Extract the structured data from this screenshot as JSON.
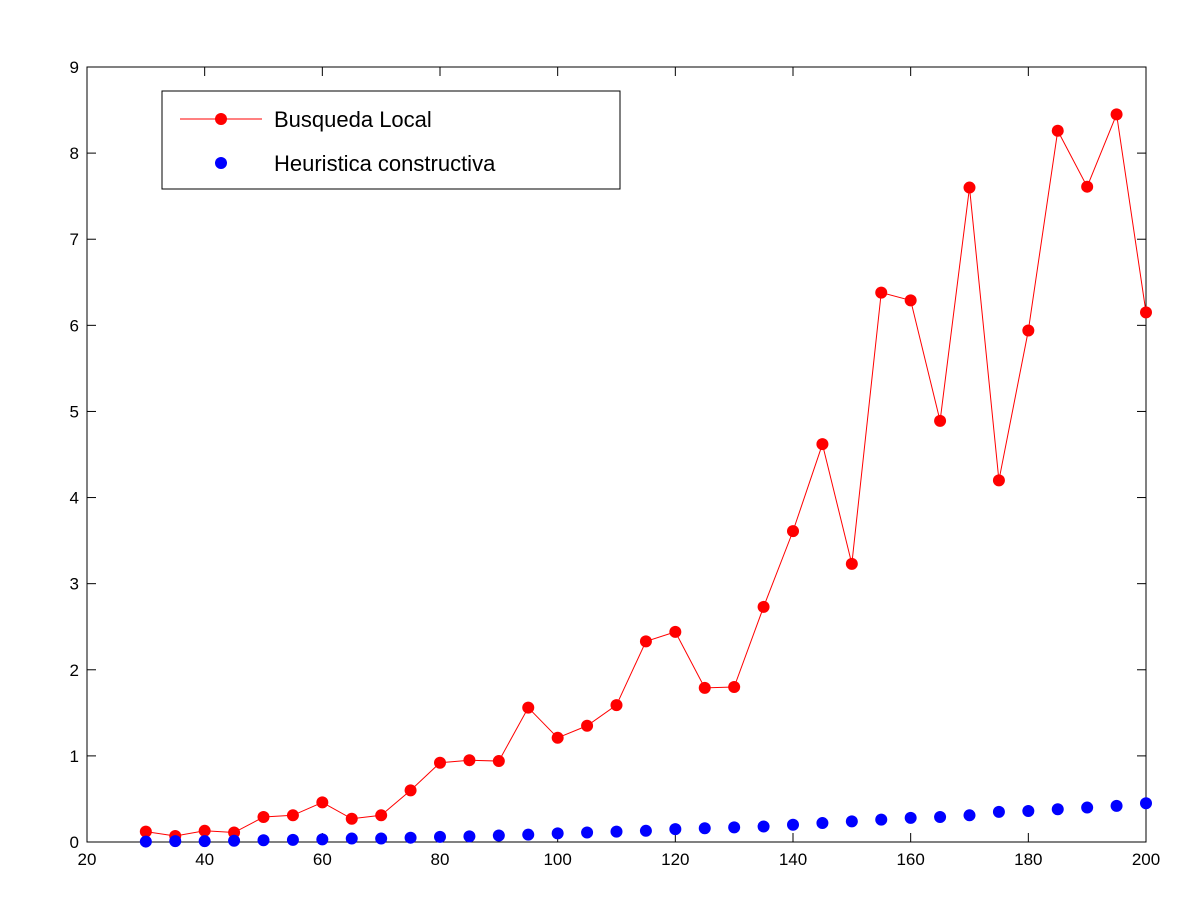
{
  "chart_data": {
    "type": "line",
    "title": "",
    "xlabel": "",
    "ylabel": "",
    "xlim": [
      20,
      200
    ],
    "ylim": [
      0,
      9
    ],
    "xticks": [
      20,
      40,
      60,
      80,
      100,
      120,
      140,
      160,
      180,
      200
    ],
    "yticks": [
      0,
      1,
      2,
      3,
      4,
      5,
      6,
      7,
      8,
      9
    ],
    "grid": false,
    "legend_position": "top-left",
    "x": [
      30,
      35,
      40,
      45,
      50,
      55,
      60,
      65,
      70,
      75,
      80,
      85,
      90,
      95,
      100,
      105,
      110,
      115,
      120,
      125,
      130,
      135,
      140,
      145,
      150,
      155,
      160,
      165,
      170,
      175,
      180,
      185,
      190,
      195,
      200
    ],
    "series": [
      {
        "name": "Busqueda Local",
        "style": "line-marker",
        "color": "#ff0000",
        "values": [
          0.12,
          0.07,
          0.13,
          0.11,
          0.29,
          0.31,
          0.46,
          0.27,
          0.31,
          0.6,
          0.92,
          0.95,
          0.94,
          1.56,
          1.21,
          1.35,
          1.59,
          2.33,
          2.44,
          1.79,
          1.8,
          2.73,
          3.61,
          4.62,
          3.23,
          6.38,
          6.29,
          4.89,
          7.6,
          4.2,
          5.94,
          8.26,
          7.61,
          8.45,
          6.15
        ]
      },
      {
        "name": "Heuristica constructiva",
        "style": "marker",
        "color": "#0000ff",
        "values": [
          0.005,
          0.01,
          0.01,
          0.015,
          0.02,
          0.025,
          0.03,
          0.04,
          0.04,
          0.05,
          0.06,
          0.065,
          0.075,
          0.085,
          0.1,
          0.11,
          0.12,
          0.13,
          0.15,
          0.16,
          0.17,
          0.18,
          0.2,
          0.22,
          0.24,
          0.26,
          0.28,
          0.29,
          0.31,
          0.35,
          0.36,
          0.38,
          0.4,
          0.42,
          0.45
        ]
      }
    ]
  }
}
